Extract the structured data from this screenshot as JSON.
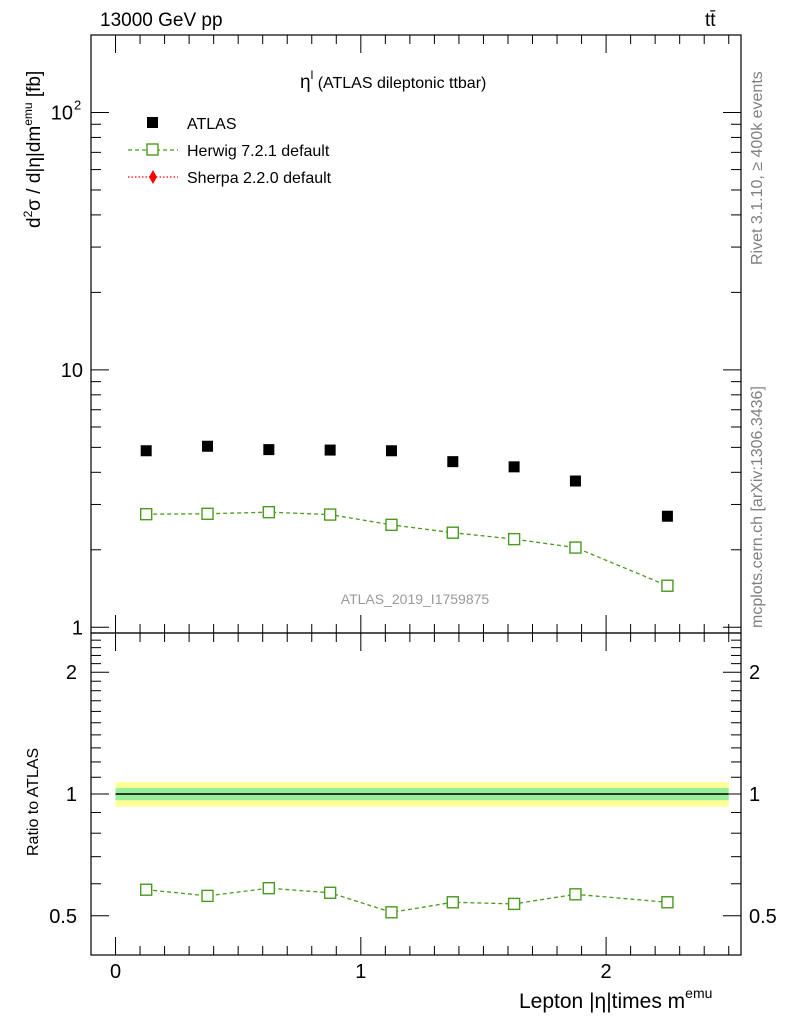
{
  "header": {
    "left": "13000 GeV pp",
    "right": "tt̄"
  },
  "side_text": {
    "rivet": "Rivet 3.1.10, ≥ 400k events",
    "mcplots": "mcplots.cern.ch [arXiv:1306.3436]"
  },
  "plot_title": {
    "symbol": "η",
    "sup": "l",
    "text": " (ATLAS dileptonic ttbar)"
  },
  "watermark": "ATLAS_2019_I1759875",
  "axes": {
    "ylabel_main": "d²σ / d|η|dmᵉᵐᵘ [fb]",
    "ylabel_main_parts": {
      "a": "d",
      "a_sup": "2",
      "b": "σ / d|η|dm",
      "b_sup": "emu",
      "c": " [fb]"
    },
    "ylabel_ratio": "Ratio to ATLAS",
    "xlabel": "Lepton |η|times m",
    "xlabel_sup": "emu",
    "main_y_ticks": [
      "1",
      "10",
      "10"
    ],
    "main_y_tick_sup": "2",
    "ratio_y_ticks": [
      "0.5",
      "1",
      "2"
    ],
    "x_ticks": [
      "0",
      "1",
      "2"
    ]
  },
  "legend": [
    {
      "label": "ATLAS",
      "color": "#000000",
      "marker": "filled-square"
    },
    {
      "label": "Herwig 7.2.1 default",
      "color": "#4a9a1e",
      "marker": "open-square-dashed"
    },
    {
      "label": "Sherpa 2.2.0 default",
      "color": "#ff0000",
      "marker": "diamond-dotted"
    }
  ],
  "chart_data": [
    {
      "type": "scatter",
      "panel": "main",
      "xlabel": "Lepton |η|times m^emu",
      "ylabel": "d²σ / d|η|dm^emu [fb]",
      "yscale": "log",
      "xlim": [
        -0.1,
        2.55
      ],
      "ylim": [
        0.95,
        200
      ],
      "series": [
        {
          "name": "ATLAS",
          "color": "#000000",
          "x": [
            0.125,
            0.375,
            0.625,
            0.875,
            1.125,
            1.375,
            1.625,
            1.875,
            2.25
          ],
          "values": [
            4.85,
            5.05,
            4.9,
            4.88,
            4.85,
            4.4,
            4.2,
            3.7,
            2.7
          ]
        },
        {
          "name": "Herwig 7.2.1 default",
          "color": "#4a9a1e",
          "x": [
            0.125,
            0.375,
            0.625,
            0.875,
            1.125,
            1.375,
            1.625,
            1.875,
            2.25
          ],
          "values": [
            2.75,
            2.76,
            2.8,
            2.74,
            2.5,
            2.33,
            2.2,
            2.04,
            1.45
          ]
        }
      ]
    },
    {
      "type": "line",
      "panel": "ratio",
      "ylabel": "Ratio to ATLAS",
      "yscale": "log",
      "xlim": [
        -0.1,
        2.55
      ],
      "ylim": [
        0.4,
        2.5
      ],
      "reference": {
        "value": 1.0,
        "band_inner": [
          0.965,
          1.035
        ],
        "band_outer": [
          0.93,
          1.07
        ]
      },
      "series": [
        {
          "name": "Herwig 7.2.1 default",
          "color": "#4a9a1e",
          "x": [
            0.125,
            0.375,
            0.625,
            0.875,
            1.125,
            1.375,
            1.625,
            1.875,
            2.25
          ],
          "values": [
            0.58,
            0.56,
            0.585,
            0.57,
            0.51,
            0.54,
            0.535,
            0.565,
            0.54
          ]
        }
      ]
    }
  ]
}
